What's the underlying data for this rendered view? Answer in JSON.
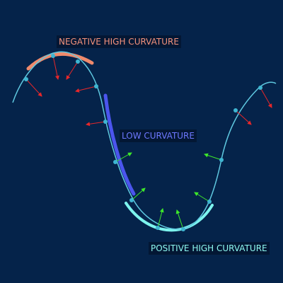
{
  "labels": {
    "negative_high_curvature": "NEGATIVE HIGH CURVATURE",
    "low_curvature": "LOW CURVATURE",
    "positive_high_curvature": "POSITIVE HIGH CURVATURE"
  },
  "colors": {
    "background": "#05234a",
    "curve": "#5fc8e0",
    "point": "#3fb6d2",
    "negative_region": "#f08a6c",
    "low_region": "#4b55ee",
    "positive_region": "#7df4ee",
    "negative_normal": "#e8272a",
    "positive_normal": "#3ee82a",
    "label_negative_text": "#f4927c",
    "label_low_text": "#6d78ff",
    "label_positive_text": "#8ef8f0"
  }
}
